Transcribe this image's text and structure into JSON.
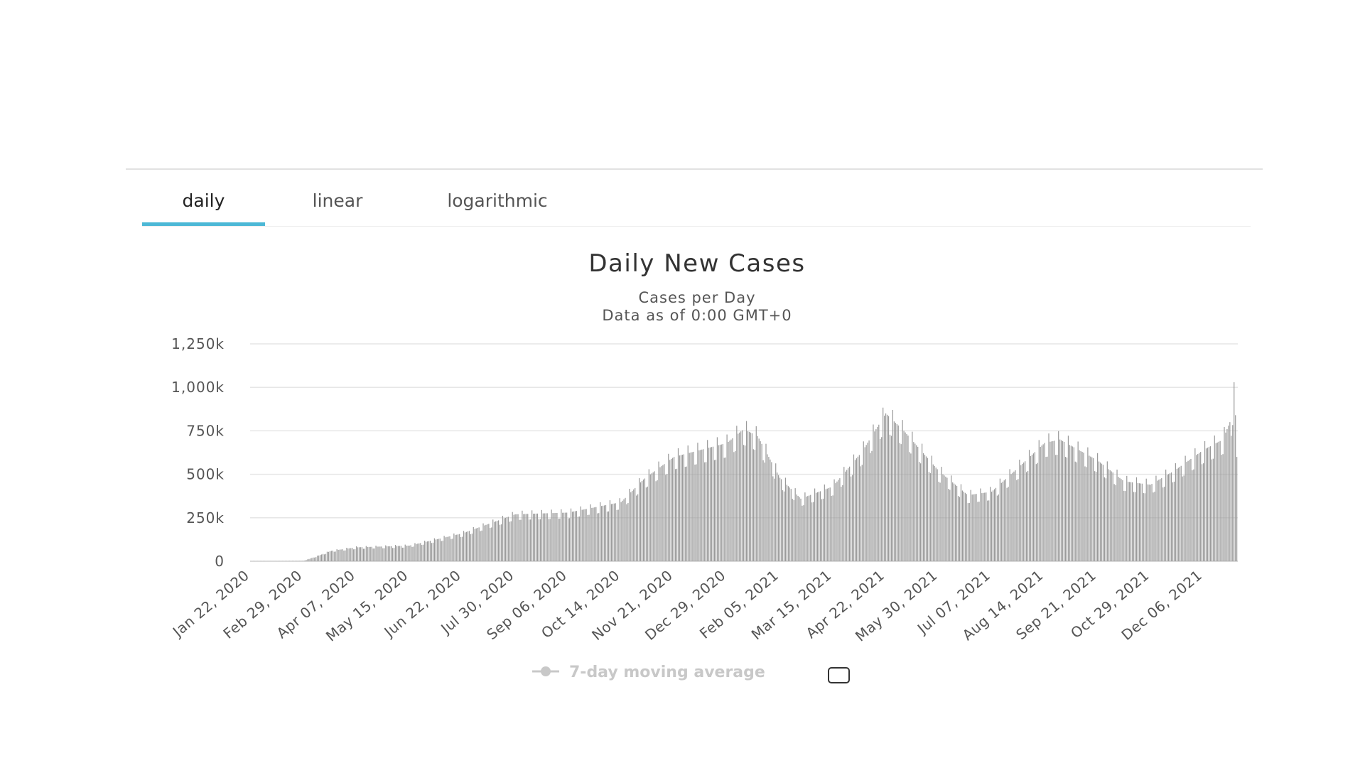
{
  "tabs": [
    {
      "label": "daily",
      "active": true
    },
    {
      "label": "linear",
      "active": false
    },
    {
      "label": "logarithmic",
      "active": false
    }
  ],
  "colors": {
    "accent": "#4cb8d6",
    "bar": "#9a9a9a",
    "legend_inactive": "#c8c8c8",
    "grid": "#e6e6e6"
  },
  "chart_data": {
    "type": "bar",
    "title": "Daily New Cases",
    "subtitle_lines": [
      "Cases per Day",
      "Data as of 0:00 GMT+0"
    ],
    "xlabel": "",
    "ylabel": "",
    "ylim": [
      0,
      1250000
    ],
    "y_ticks": [
      0,
      250000,
      500000,
      750000,
      1000000,
      1250000
    ],
    "y_tick_labels": [
      "0",
      "250k",
      "500k",
      "750k",
      "1,000k",
      "1,250k"
    ],
    "x_start": "2020-01-22",
    "x_tick_labels": [
      "Jan 22, 2020",
      "Feb 29, 2020",
      "Apr 07, 2020",
      "May 15, 2020",
      "Jun 22, 2020",
      "Jul 30, 2020",
      "Sep 06, 2020",
      "Oct 14, 2020",
      "Nov 21, 2020",
      "Dec 29, 2020",
      "Feb 05, 2021",
      "Mar 15, 2021",
      "Apr 22, 2021",
      "May 30, 2021",
      "Jul 07, 2021",
      "Aug 14, 2021",
      "Sep 21, 2021",
      "Oct 29, 2021",
      "Dec 06, 2021"
    ],
    "series_trend": {
      "name": "Daily New Cases",
      "dates": [
        "2020-01-22",
        "2020-02-12",
        "2020-02-29",
        "2020-03-10",
        "2020-03-20",
        "2020-04-07",
        "2020-05-15",
        "2020-06-22",
        "2020-07-30",
        "2020-09-06",
        "2020-10-14",
        "2020-10-30",
        "2020-11-21",
        "2020-12-29",
        "2021-01-10",
        "2021-01-20",
        "2021-02-05",
        "2021-02-20",
        "2021-03-15",
        "2021-04-05",
        "2021-04-22",
        "2021-05-05",
        "2021-05-30",
        "2021-06-20",
        "2021-07-07",
        "2021-07-25",
        "2021-08-14",
        "2021-08-25",
        "2021-09-21",
        "2021-10-10",
        "2021-10-29",
        "2021-11-15",
        "2021-12-06",
        "2021-12-20",
        "2021-12-26",
        "2021-12-28",
        "2021-12-29",
        "2021-12-30"
      ],
      "values": [
        600,
        1000,
        2000,
        30000,
        60000,
        80000,
        90000,
        160000,
        270000,
        280000,
        340000,
        470000,
        600000,
        680000,
        760000,
        720000,
        480000,
        360000,
        430000,
        630000,
        850000,
        750000,
        520000,
        380000,
        400000,
        530000,
        680000,
        700000,
        580000,
        460000,
        440000,
        520000,
        640000,
        700000,
        820000,
        960000,
        840000,
        600000
      ],
      "weekly_dip": 0.12
    },
    "legend": {
      "label": "7-day moving average",
      "enabled": false,
      "position": "bottom"
    },
    "grid": true
  }
}
